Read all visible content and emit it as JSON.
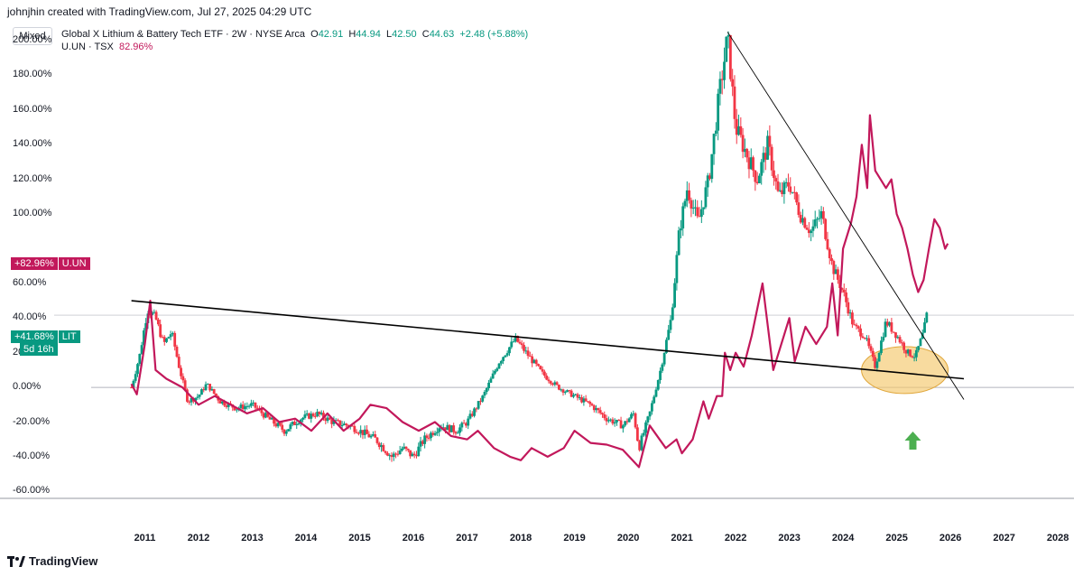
{
  "header": {
    "attribution": "johnjhin created with TradingView.com, Jul 27, 2025 04:29 UTC"
  },
  "toolbar": {
    "mode_label": "Mixed"
  },
  "legend": {
    "title": "Global X Lithium & Battery Tech ETF · 2W · NYSE Arca",
    "o_label": "O",
    "o_value": "42.91",
    "h_label": "H",
    "h_value": "44.94",
    "l_label": "L",
    "l_value": "42.50",
    "c_label": "C",
    "c_value": "44.63",
    "change": "+2.48 (+5.88%)",
    "compare_symbol": "U.UN · TSX",
    "compare_value": "82.96%"
  },
  "price_tags": {
    "uun_value": "+82.96%",
    "uun_symbol": "U.UN",
    "lit_value": "+41.68%",
    "lit_symbol": "LIT",
    "lit_countdown": "5d 16h"
  },
  "footer": {
    "brand": "TradingView"
  },
  "colors": {
    "up": "#089981",
    "down": "#f23645",
    "compare": "#c2185b",
    "trend": "#000000",
    "highlight": "#f5c86b",
    "arrow": "#4caf50"
  },
  "chart_data": {
    "type": "line",
    "yaxis_labels": [
      "200.00%",
      "180.00%",
      "160.00%",
      "140.00%",
      "120.00%",
      "100.00%",
      "60.00%",
      "40.00%",
      "20.00%",
      "0.00%",
      "-20.00%",
      "-40.00%",
      "-60.00%"
    ],
    "xaxis_labels": [
      "2011",
      "2012",
      "2013",
      "2014",
      "2015",
      "2016",
      "2017",
      "2018",
      "2019",
      "2020",
      "2021",
      "2022",
      "2023",
      "2024",
      "2025",
      "2026",
      "2027",
      "2028"
    ],
    "ylim": [
      -64,
      212
    ],
    "xlim": [
      2010.0,
      2028.3
    ],
    "series": [
      {
        "name": "LIT",
        "style": "candles",
        "points": [
          [
            2010.75,
            0
          ],
          [
            2010.9,
            18
          ],
          [
            2011.05,
            45
          ],
          [
            2011.2,
            40
          ],
          [
            2011.35,
            25
          ],
          [
            2011.5,
            32
          ],
          [
            2011.65,
            10
          ],
          [
            2011.8,
            -8
          ],
          [
            2012.0,
            -5
          ],
          [
            2012.15,
            2
          ],
          [
            2012.4,
            -8
          ],
          [
            2012.7,
            -12
          ],
          [
            2013.0,
            -10
          ],
          [
            2013.3,
            -18
          ],
          [
            2013.6,
            -25
          ],
          [
            2013.9,
            -18
          ],
          [
            2014.2,
            -15
          ],
          [
            2014.5,
            -20
          ],
          [
            2014.8,
            -22
          ],
          [
            2015.0,
            -25
          ],
          [
            2015.3,
            -30
          ],
          [
            2015.6,
            -40
          ],
          [
            2015.8,
            -35
          ],
          [
            2016.0,
            -40
          ],
          [
            2016.2,
            -30
          ],
          [
            2016.5,
            -22
          ],
          [
            2016.8,
            -25
          ],
          [
            2017.0,
            -20
          ],
          [
            2017.3,
            -5
          ],
          [
            2017.6,
            15
          ],
          [
            2017.9,
            28
          ],
          [
            2018.1,
            20
          ],
          [
            2018.4,
            8
          ],
          [
            2018.7,
            0
          ],
          [
            2019.0,
            -5
          ],
          [
            2019.3,
            -10
          ],
          [
            2019.6,
            -18
          ],
          [
            2019.9,
            -22
          ],
          [
            2020.1,
            -15
          ],
          [
            2020.2,
            -35
          ],
          [
            2020.4,
            -15
          ],
          [
            2020.6,
            10
          ],
          [
            2020.8,
            40
          ],
          [
            2020.95,
            90
          ],
          [
            2021.1,
            115
          ],
          [
            2021.3,
            95
          ],
          [
            2021.5,
            120
          ],
          [
            2021.7,
            170
          ],
          [
            2021.85,
            202
          ],
          [
            2022.0,
            150
          ],
          [
            2022.2,
            135
          ],
          [
            2022.4,
            120
          ],
          [
            2022.6,
            140
          ],
          [
            2022.8,
            110
          ],
          [
            2023.0,
            118
          ],
          [
            2023.2,
            100
          ],
          [
            2023.4,
            90
          ],
          [
            2023.6,
            100
          ],
          [
            2023.8,
            70
          ],
          [
            2024.0,
            55
          ],
          [
            2024.2,
            35
          ],
          [
            2024.4,
            30
          ],
          [
            2024.6,
            12
          ],
          [
            2024.8,
            38
          ],
          [
            2025.0,
            30
          ],
          [
            2025.2,
            20
          ],
          [
            2025.35,
            18
          ],
          [
            2025.5,
            32
          ],
          [
            2025.56,
            41.68
          ]
        ]
      },
      {
        "name": "U.UN",
        "style": "line",
        "points": [
          [
            2010.75,
            2
          ],
          [
            2010.85,
            -4
          ],
          [
            2011.0,
            25
          ],
          [
            2011.1,
            50
          ],
          [
            2011.2,
            10
          ],
          [
            2011.4,
            5
          ],
          [
            2011.7,
            0
          ],
          [
            2012.0,
            -10
          ],
          [
            2012.3,
            -5
          ],
          [
            2012.6,
            -10
          ],
          [
            2012.9,
            -15
          ],
          [
            2013.2,
            -12
          ],
          [
            2013.5,
            -20
          ],
          [
            2013.8,
            -18
          ],
          [
            2014.1,
            -25
          ],
          [
            2014.4,
            -15
          ],
          [
            2014.7,
            -25
          ],
          [
            2015.0,
            -18
          ],
          [
            2015.2,
            -10
          ],
          [
            2015.5,
            -12
          ],
          [
            2015.8,
            -20
          ],
          [
            2016.1,
            -25
          ],
          [
            2016.4,
            -20
          ],
          [
            2016.7,
            -28
          ],
          [
            2017.0,
            -30
          ],
          [
            2017.2,
            -25
          ],
          [
            2017.5,
            -35
          ],
          [
            2017.8,
            -40
          ],
          [
            2018.0,
            -42
          ],
          [
            2018.2,
            -35
          ],
          [
            2018.5,
            -40
          ],
          [
            2018.8,
            -35
          ],
          [
            2019.0,
            -25
          ],
          [
            2019.3,
            -32
          ],
          [
            2019.6,
            -33
          ],
          [
            2019.9,
            -36
          ],
          [
            2020.2,
            -46
          ],
          [
            2020.4,
            -22
          ],
          [
            2020.7,
            -35
          ],
          [
            2020.9,
            -30
          ],
          [
            2021.0,
            -38
          ],
          [
            2021.2,
            -30
          ],
          [
            2021.4,
            -8
          ],
          [
            2021.5,
            -18
          ],
          [
            2021.65,
            -5
          ],
          [
            2021.75,
            -5
          ],
          [
            2021.8,
            20
          ],
          [
            2021.9,
            10
          ],
          [
            2022.0,
            20
          ],
          [
            2022.15,
            12
          ],
          [
            2022.3,
            30
          ],
          [
            2022.5,
            60
          ],
          [
            2022.7,
            10
          ],
          [
            2022.9,
            30
          ],
          [
            2023.0,
            40
          ],
          [
            2023.1,
            15
          ],
          [
            2023.3,
            35
          ],
          [
            2023.5,
            25
          ],
          [
            2023.7,
            35
          ],
          [
            2023.8,
            60
          ],
          [
            2023.9,
            30
          ],
          [
            2024.0,
            80
          ],
          [
            2024.15,
            95
          ],
          [
            2024.25,
            110
          ],
          [
            2024.35,
            140
          ],
          [
            2024.45,
            115
          ],
          [
            2024.5,
            157
          ],
          [
            2024.6,
            125
          ],
          [
            2024.8,
            115
          ],
          [
            2024.9,
            120
          ],
          [
            2025.0,
            100
          ],
          [
            2025.1,
            92
          ],
          [
            2025.2,
            80
          ],
          [
            2025.3,
            65
          ],
          [
            2025.4,
            55
          ],
          [
            2025.5,
            62
          ],
          [
            2025.6,
            80
          ],
          [
            2025.7,
            97
          ],
          [
            2025.8,
            92
          ],
          [
            2025.9,
            80
          ],
          [
            2025.95,
            82.96
          ]
        ]
      }
    ],
    "trendlines": [
      {
        "name": "support",
        "points": [
          [
            2010.75,
            50
          ],
          [
            2026.25,
            5
          ]
        ]
      },
      {
        "name": "resistance",
        "points": [
          [
            2021.85,
            205
          ],
          [
            2026.25,
            -7
          ]
        ]
      }
    ],
    "grid": false,
    "legend_position": "top-left"
  }
}
